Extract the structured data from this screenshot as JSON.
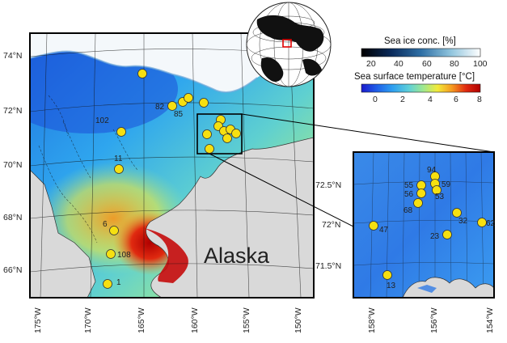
{
  "main_map": {
    "region_label": "Alaska",
    "lat_labels": [
      "74°N",
      "72°N",
      "70°N",
      "68°N",
      "66°N"
    ],
    "lon_labels": [
      "175°W",
      "170°W",
      "165°W",
      "160°W",
      "155°W",
      "150°W"
    ],
    "stations": [
      {
        "id": "102",
        "label": "102"
      },
      {
        "id": "11",
        "label": "11"
      },
      {
        "id": "6",
        "label": "6"
      },
      {
        "id": "108",
        "label": "108"
      },
      {
        "id": "1",
        "label": "1"
      },
      {
        "id": "82",
        "label": "82"
      },
      {
        "id": "85",
        "label": "85"
      },
      {
        "id": "n1",
        "label": ""
      },
      {
        "id": "n2",
        "label": ""
      },
      {
        "id": "n3",
        "label": ""
      },
      {
        "id": "n4",
        "label": ""
      },
      {
        "id": "n5",
        "label": ""
      }
    ],
    "cluster_markers": 8
  },
  "inset_map": {
    "lat_labels": [
      "72.5°N",
      "72°N",
      "71.5°N"
    ],
    "lon_labels": [
      "158°W",
      "156°W",
      "154°W"
    ],
    "stations": [
      {
        "id": "94",
        "label": "94"
      },
      {
        "id": "55",
        "label": "55"
      },
      {
        "id": "59",
        "label": "59"
      },
      {
        "id": "56",
        "label": "56"
      },
      {
        "id": "53",
        "label": "53"
      },
      {
        "id": "68",
        "label": "68"
      },
      {
        "id": "32",
        "label": "32"
      },
      {
        "id": "62",
        "label": "62"
      },
      {
        "id": "47",
        "label": "47"
      },
      {
        "id": "23",
        "label": "23"
      },
      {
        "id": "13",
        "label": "13"
      }
    ]
  },
  "legend": {
    "ice_title": "Sea ice conc. [%]",
    "ice_ticks": [
      "20",
      "40",
      "60",
      "80",
      "100"
    ],
    "sst_title": "Sea surface temperature [°C]",
    "sst_ticks": [
      "0",
      "2",
      "4",
      "6",
      "8"
    ]
  },
  "colors": {
    "sst_ramp": [
      "#1a1acc",
      "#1f5fe8",
      "#2e9ff0",
      "#5fd0d8",
      "#9fe890",
      "#f2ea3a",
      "#f59a20",
      "#e02a10",
      "#b00000"
    ],
    "ice_ramp": [
      "#000000",
      "#0a2a5a",
      "#2f6fa5",
      "#8fc4dd",
      "#ffffff"
    ],
    "land": "#d9d9d9",
    "station": "#f6e010",
    "locator_box": "#e00000"
  }
}
